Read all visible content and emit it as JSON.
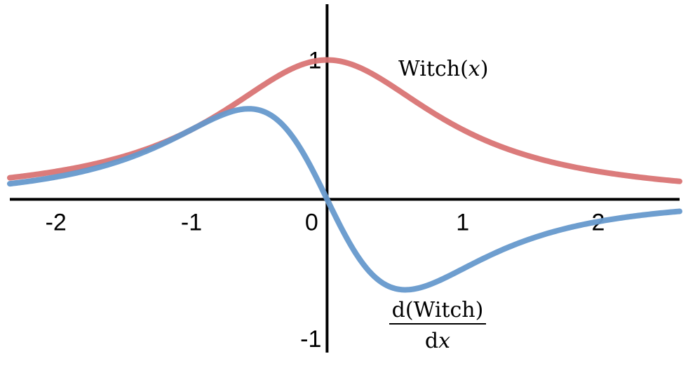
{
  "chart_data": {
    "type": "line",
    "title": "",
    "xlabel": "",
    "ylabel": "",
    "xlim": [
      -2.34,
      2.6
    ],
    "ylim": [
      -1.1,
      1.4
    ],
    "grid": false,
    "legend": "none",
    "x_ticks": [
      {
        "value": -2,
        "label": "-2"
      },
      {
        "value": -1,
        "label": "-1"
      },
      {
        "value": 0,
        "label": "0"
      },
      {
        "value": 1,
        "label": "1"
      },
      {
        "value": 2,
        "label": "2"
      }
    ],
    "y_ticks": [
      {
        "value": 1,
        "label": "1"
      },
      {
        "value": -1,
        "label": "-1"
      }
    ],
    "series": [
      {
        "color": "#d97474",
        "function": "1/(1+x^2)",
        "x": [
          -2.34,
          -2.0,
          -1.5,
          -1.0,
          -0.75,
          -0.5,
          -0.25,
          0.0,
          0.25,
          0.5,
          0.75,
          1.0,
          1.5,
          2.0,
          2.6
        ],
        "y": [
          0.154,
          0.2,
          0.308,
          0.5,
          0.64,
          0.8,
          0.941,
          1.0,
          0.941,
          0.8,
          0.64,
          0.5,
          0.308,
          0.2,
          0.129
        ]
      },
      {
        "color": "#6699cc",
        "function": "-2x/(1+x^2)^2",
        "x": [
          -2.34,
          -2.0,
          -1.5,
          -1.0,
          -0.75,
          -0.577,
          -0.5,
          -0.25,
          0.0,
          0.25,
          0.5,
          0.577,
          0.75,
          1.0,
          1.5,
          2.0,
          2.6
        ],
        "y": [
          0.111,
          0.16,
          0.284,
          0.5,
          0.614,
          0.65,
          0.64,
          0.443,
          0.0,
          -0.443,
          -0.64,
          -0.65,
          -0.614,
          -0.5,
          -0.284,
          -0.16,
          -0.086
        ]
      }
    ],
    "annotations": [
      {
        "text_main": "Witch(",
        "text_var": "x",
        "text_close": ")",
        "near": "red curve peak, right"
      },
      {
        "numerator": "d(Witch)",
        "denominator_main": "d",
        "denominator_var": "x",
        "near": "blue curve minimum, below"
      }
    ]
  }
}
